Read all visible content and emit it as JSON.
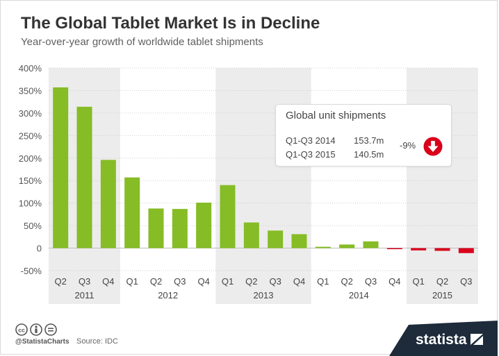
{
  "header": {
    "title": "The Global Tablet Market Is in Decline",
    "subtitle": "Year-over-year growth of worldwide tablet shipments"
  },
  "chart_data": {
    "type": "bar",
    "title": "The Global Tablet Market Is in Decline",
    "subtitle": "Year-over-year growth of worldwide tablet shipments",
    "categories": [
      "Q2",
      "Q3",
      "Q4",
      "Q1",
      "Q2",
      "Q3",
      "Q4",
      "Q1",
      "Q2",
      "Q3",
      "Q4",
      "Q1",
      "Q2",
      "Q3",
      "Q4",
      "Q1",
      "Q2",
      "Q3"
    ],
    "years": [
      {
        "label": "2011",
        "count": 3
      },
      {
        "label": "2012",
        "count": 4
      },
      {
        "label": "2013",
        "count": 4
      },
      {
        "label": "2014",
        "count": 4
      },
      {
        "label": "2015",
        "count": 3
      }
    ],
    "values": [
      357,
      314,
      196,
      157,
      88,
      87,
      101,
      140,
      57,
      39,
      31,
      3,
      8,
      15,
      -2,
      -5,
      -6,
      -11
    ],
    "y_ticks": [
      "400%",
      "350%",
      "300%",
      "250%",
      "200%",
      "150%",
      "100%",
      "50%",
      "0",
      "-50%"
    ],
    "ylim": [
      -50,
      400
    ],
    "unit": "%",
    "positive_color": "#86bc25",
    "negative_color": "#d9001b",
    "grid": true
  },
  "callout": {
    "title": "Global unit shipments",
    "rows": [
      {
        "label": "Q1-Q3 2014",
        "value": "153.7m"
      },
      {
        "label": "Q1-Q3 2015",
        "value": "140.5m"
      }
    ],
    "change": "-9%",
    "arrow_icon": "down-arrow-icon",
    "arrow_color": "#d9001b"
  },
  "footer": {
    "license_icons": [
      "cc-icon",
      "attribution-icon",
      "no-derivatives-icon"
    ],
    "handle": "@StatistaCharts",
    "source": "Source: IDC",
    "brand": "statista",
    "brand_color": "#1d2b3a"
  }
}
